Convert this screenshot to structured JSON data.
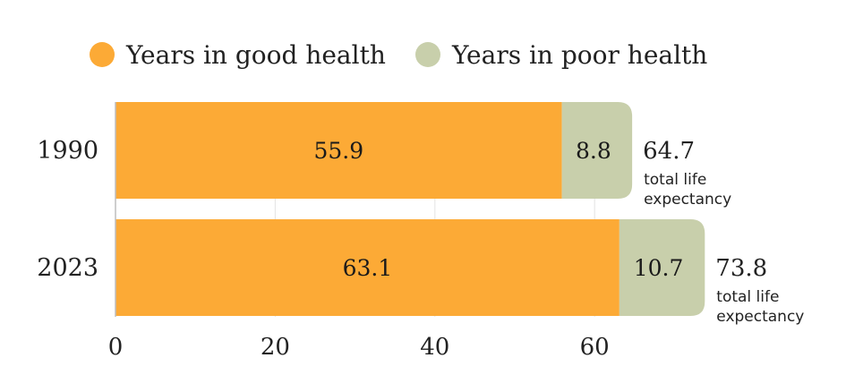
{
  "chart_data": {
    "type": "bar",
    "orientation": "horizontal",
    "stacked": true,
    "categories": [
      "1990",
      "2023"
    ],
    "series": [
      {
        "name": "Years in good health",
        "values": [
          55.9,
          63.1
        ],
        "color": "#FCAA36"
      },
      {
        "name": "Years in poor health",
        "values": [
          8.8,
          10.7
        ],
        "color": "#C8CFAB"
      }
    ],
    "totals": [
      "64.7",
      "73.8"
    ],
    "total_note_line1": "total life",
    "total_note_line2": "expectancy",
    "xticks": [
      0,
      20,
      40,
      60
    ],
    "xlim": [
      0,
      75
    ],
    "grid": true,
    "legend_position": "top",
    "title": "",
    "xlabel": "",
    "ylabel": ""
  }
}
